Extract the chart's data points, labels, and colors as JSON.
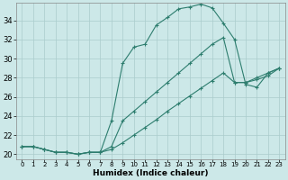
{
  "xlabel": "Humidex (Indice chaleur)",
  "bg_color": "#cce8e8",
  "grid_color": "#aacccc",
  "line_color": "#2d7d6e",
  "xlim": [
    -0.5,
    23.5
  ],
  "ylim": [
    19.5,
    35.8
  ],
  "xticks": [
    0,
    1,
    2,
    3,
    4,
    5,
    6,
    7,
    8,
    9,
    10,
    11,
    12,
    13,
    14,
    15,
    16,
    17,
    18,
    19,
    20,
    21,
    22,
    23
  ],
  "yticks": [
    20,
    22,
    24,
    26,
    28,
    30,
    32,
    34
  ],
  "line1_x": [
    0,
    1,
    2,
    3,
    4,
    5,
    6,
    7,
    8,
    9,
    10,
    11,
    12,
    13,
    14,
    15,
    16,
    17,
    18,
    19,
    20,
    21,
    22,
    23
  ],
  "line1_y": [
    20.8,
    20.8,
    20.5,
    20.2,
    20.2,
    20.0,
    20.2,
    20.2,
    23.5,
    29.5,
    31.2,
    31.5,
    33.5,
    34.3,
    35.2,
    35.4,
    35.7,
    35.3,
    33.7,
    32.0,
    27.3,
    27.0,
    28.5,
    29.0
  ],
  "line2_x": [
    0,
    1,
    2,
    3,
    4,
    5,
    6,
    7,
    8,
    9,
    10,
    11,
    12,
    13,
    14,
    15,
    16,
    17,
    18,
    19,
    20,
    21,
    22,
    23
  ],
  "line2_y": [
    20.8,
    20.8,
    20.5,
    20.2,
    20.2,
    20.0,
    20.2,
    20.2,
    20.8,
    23.5,
    24.5,
    25.5,
    26.5,
    27.5,
    28.5,
    29.5,
    30.5,
    31.5,
    32.2,
    27.5,
    27.5,
    28.0,
    28.5,
    29.0
  ],
  "line3_x": [
    0,
    1,
    2,
    3,
    4,
    5,
    6,
    7,
    8,
    9,
    10,
    11,
    12,
    13,
    14,
    15,
    16,
    17,
    18,
    19,
    20,
    21,
    22,
    23
  ],
  "line3_y": [
    20.8,
    20.8,
    20.5,
    20.2,
    20.2,
    20.0,
    20.2,
    20.2,
    20.5,
    21.2,
    22.0,
    22.8,
    23.6,
    24.5,
    25.3,
    26.1,
    26.9,
    27.7,
    28.5,
    27.5,
    27.5,
    27.8,
    28.2,
    29.0
  ],
  "xlabel_fontsize": 6.5,
  "ytick_fontsize": 6.0,
  "xtick_fontsize": 5.0
}
